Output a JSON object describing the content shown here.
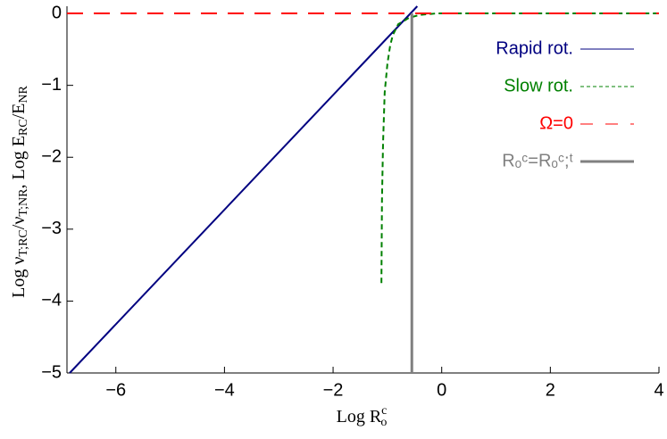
{
  "chart_data": {
    "type": "line",
    "xlabel": {
      "text": "Log R",
      "sub": "o",
      "sup": "c"
    },
    "ylabel": [
      {
        "text": "Log ν",
        "sub": "T;RC"
      },
      {
        "text": "/ν",
        "sub": "T;NR"
      },
      {
        "text": ", Log E",
        "sub": "RC"
      },
      {
        "text": "/E",
        "sub": "NR"
      }
    ],
    "xlim": [
      -6.9,
      4
    ],
    "ylim": [
      -5,
      0.1
    ],
    "xticks": [
      {
        "value": -6,
        "label": "−6"
      },
      {
        "value": -4,
        "label": "−4"
      },
      {
        "value": -2,
        "label": "−2"
      },
      0,
      2,
      4
    ],
    "yticks": [
      0,
      {
        "value": -1,
        "label": "−1"
      },
      {
        "value": -2,
        "label": "−2"
      },
      {
        "value": -3,
        "label": "−3"
      },
      {
        "value": -4,
        "label": "−4"
      },
      {
        "value": -5,
        "label": "−5"
      }
    ],
    "series": [
      {
        "name": "Rapid rot.",
        "color": "#000080",
        "style": "solid",
        "x": [
          -6.85,
          -0.45
        ],
        "values": [
          -5,
          0.1
        ]
      },
      {
        "name": "Slow rot.",
        "color": "#008000",
        "style": "dashed",
        "x": [
          -1.11,
          -1.1,
          -1.08,
          -1.05,
          -1.0,
          -0.95,
          -0.9,
          -0.8,
          -0.6,
          -0.4,
          -0.1,
          0.2,
          4
        ],
        "values": [
          -3.75,
          -2.6,
          -1.8,
          -1.1,
          -0.7,
          -0.45,
          -0.3,
          -0.15,
          -0.06,
          -0.02,
          0,
          0,
          0
        ]
      },
      {
        "name": "Ω=0",
        "color": "#ff0000",
        "style": "longdash",
        "x": [
          -6.9,
          4
        ],
        "values": [
          0,
          0
        ]
      },
      {
        "name": "Rₒᶜ=Rₒᶜ;ᵗ",
        "color": "#808080",
        "style": "thick",
        "x": [
          -0.55,
          -0.55
        ],
        "values": [
          -5,
          0
        ]
      }
    ]
  }
}
